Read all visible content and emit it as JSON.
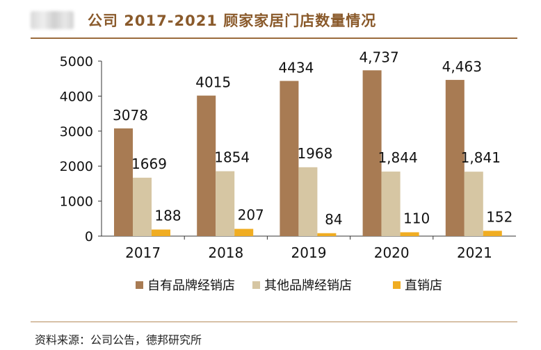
{
  "header": {
    "title": "公司 2017-2021 顾家家居门店数量情况"
  },
  "source": "资料来源：公司公告，德邦研究所",
  "colors": {
    "title": "#8a5a2b",
    "rule": "#9a6b3c",
    "series": [
      "#a87b53",
      "#d6c6a3",
      "#f0ad22"
    ]
  },
  "chart_data": {
    "type": "bar",
    "categories": [
      "2017",
      "2018",
      "2019",
      "2020",
      "2021"
    ],
    "yticks": [
      "0",
      "1000",
      "2000",
      "3000",
      "4000",
      "5000"
    ],
    "ylim": [
      0,
      5000
    ],
    "grid": false,
    "legend_position": "bottom",
    "series": [
      {
        "name": "自有品牌经销店",
        "values": [
          3078,
          4015,
          4434,
          4737,
          4463
        ],
        "labels": [
          "3078",
          "4015",
          "4434",
          "4,737",
          "4,463"
        ]
      },
      {
        "name": "其他品牌经销店",
        "values": [
          1669,
          1854,
          1968,
          1844,
          1841
        ],
        "labels": [
          "1669",
          "1854",
          "1968",
          "1,844",
          "1,841"
        ]
      },
      {
        "name": "直销店",
        "values": [
          188,
          207,
          84,
          110,
          152
        ],
        "labels": [
          "188",
          "207",
          "84",
          "110",
          "152"
        ]
      }
    ]
  }
}
